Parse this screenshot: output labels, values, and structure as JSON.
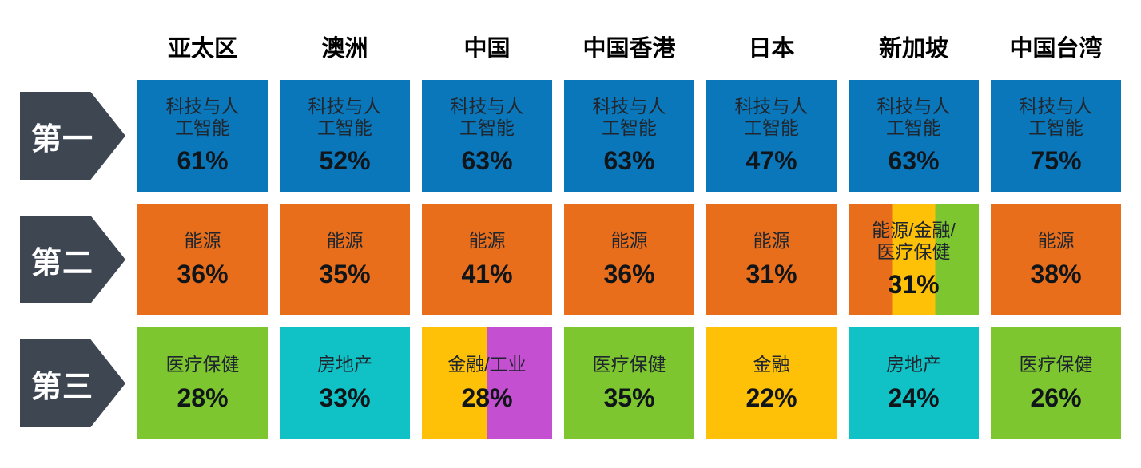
{
  "palette": {
    "rank_arrow": "#3E4652",
    "tech_ai_blue": "#0A77BB",
    "energy_orange": "#E96E1C",
    "healthcare_green": "#7DC62F",
    "real_estate_teal": "#10C2C6",
    "finance_yellow": "#FFC107",
    "industrials_magenta": "#C44FD0"
  },
  "chart_data": {
    "type": "table",
    "columns": [
      "亚太区",
      "澳洲",
      "中国",
      "中国香港",
      "日本",
      "新加坡",
      "中国台湾"
    ],
    "rank_rows": [
      {
        "rank_label": "第一",
        "cells": [
          {
            "sector": "科技与人工智能",
            "sector_label": "科技与人\n工智能",
            "value": 61,
            "value_label": "61%",
            "colors": [
              "#0A77BB"
            ]
          },
          {
            "sector": "科技与人工智能",
            "sector_label": "科技与人\n工智能",
            "value": 52,
            "value_label": "52%",
            "colors": [
              "#0A77BB"
            ]
          },
          {
            "sector": "科技与人工智能",
            "sector_label": "科技与人\n工智能",
            "value": 63,
            "value_label": "63%",
            "colors": [
              "#0A77BB"
            ]
          },
          {
            "sector": "科技与人工智能",
            "sector_label": "科技与人\n工智能",
            "value": 63,
            "value_label": "63%",
            "colors": [
              "#0A77BB"
            ]
          },
          {
            "sector": "科技与人工智能",
            "sector_label": "科技与人\n工智能",
            "value": 47,
            "value_label": "47%",
            "colors": [
              "#0A77BB"
            ]
          },
          {
            "sector": "科技与人工智能",
            "sector_label": "科技与人\n工智能",
            "value": 63,
            "value_label": "63%",
            "colors": [
              "#0A77BB"
            ]
          },
          {
            "sector": "科技与人工智能",
            "sector_label": "科技与人\n工智能",
            "value": 75,
            "value_label": "75%",
            "colors": [
              "#0A77BB"
            ]
          }
        ]
      },
      {
        "rank_label": "第二",
        "cells": [
          {
            "sector": "能源",
            "sector_label": "能源",
            "value": 36,
            "value_label": "36%",
            "colors": [
              "#E96E1C"
            ]
          },
          {
            "sector": "能源",
            "sector_label": "能源",
            "value": 35,
            "value_label": "35%",
            "colors": [
              "#E96E1C"
            ]
          },
          {
            "sector": "能源",
            "sector_label": "能源",
            "value": 41,
            "value_label": "41%",
            "colors": [
              "#E96E1C"
            ]
          },
          {
            "sector": "能源",
            "sector_label": "能源",
            "value": 36,
            "value_label": "36%",
            "colors": [
              "#E96E1C"
            ]
          },
          {
            "sector": "能源",
            "sector_label": "能源",
            "value": 31,
            "value_label": "31%",
            "colors": [
              "#E96E1C"
            ]
          },
          {
            "sector": "能源/金融/医疗保健",
            "sector_label": "能源/金融/\n医疗保健",
            "value": 31,
            "value_label": "31%",
            "colors": [
              "#E96E1C",
              "#FFC107",
              "#7DC62F"
            ]
          },
          {
            "sector": "能源",
            "sector_label": "能源",
            "value": 38,
            "value_label": "38%",
            "colors": [
              "#E96E1C"
            ]
          }
        ]
      },
      {
        "rank_label": "第三",
        "cells": [
          {
            "sector": "医疗保健",
            "sector_label": "医疗保健",
            "value": 28,
            "value_label": "28%",
            "colors": [
              "#7DC62F"
            ]
          },
          {
            "sector": "房地产",
            "sector_label": "房地产",
            "value": 33,
            "value_label": "33%",
            "colors": [
              "#10C2C6"
            ]
          },
          {
            "sector": "金融/工业",
            "sector_label": "金融/工业",
            "value": 28,
            "value_label": "28%",
            "colors": [
              "#FFC107",
              "#C44FD0"
            ]
          },
          {
            "sector": "医疗保健",
            "sector_label": "医疗保健",
            "value": 35,
            "value_label": "35%",
            "colors": [
              "#7DC62F"
            ]
          },
          {
            "sector": "金融",
            "sector_label": "金融",
            "value": 22,
            "value_label": "22%",
            "colors": [
              "#FFC107"
            ]
          },
          {
            "sector": "房地产",
            "sector_label": "房地产",
            "value": 24,
            "value_label": "24%",
            "colors": [
              "#10C2C6"
            ]
          },
          {
            "sector": "医疗保健",
            "sector_label": "医疗保健",
            "value": 26,
            "value_label": "26%",
            "colors": [
              "#7DC62F"
            ]
          }
        ]
      }
    ]
  }
}
